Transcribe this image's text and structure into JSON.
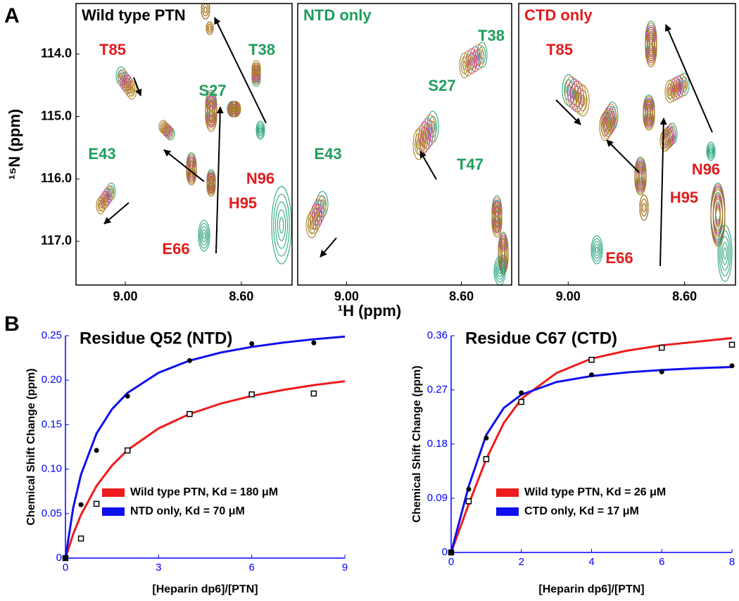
{
  "figure": {
    "panel_labels": [
      "A",
      "B"
    ],
    "xlabel": "¹H (ppm)",
    "ylabel": "¹⁵N (ppm)"
  },
  "chart_data": [
    {
      "type": "spectrum",
      "title": "Wild type PTN",
      "title_color": "#000000",
      "xlim": [
        9.17,
        8.425
      ],
      "ylim": [
        117.7,
        113.19
      ],
      "xticks": [
        {
          "value": 9.0,
          "label": "9.00"
        },
        {
          "value": 8.6,
          "label": "8.60"
        }
      ],
      "yticks": [
        {
          "value": 114.0,
          "label": "114.0"
        },
        {
          "value": 115.0,
          "label": "115.0"
        },
        {
          "value": 116.0,
          "label": "116.0"
        },
        {
          "value": 117.0,
          "label": "117.0"
        }
      ],
      "annotations": [
        {
          "text": "T85",
          "color": "#e31a1c"
        },
        {
          "text": "T38",
          "color": "#1e9e5a"
        },
        {
          "text": "S27",
          "color": "#1e9e5a"
        },
        {
          "text": "E43",
          "color": "#1e9e5a"
        },
        {
          "text": "N96",
          "color": "#e31a1c"
        },
        {
          "text": "H95",
          "color": "#e31a1c"
        },
        {
          "text": "E66",
          "color": "#e31a1c"
        }
      ]
    },
    {
      "type": "spectrum",
      "title": "NTD only",
      "title_color": "#1e9e5a",
      "xlim": [
        9.17,
        8.425
      ],
      "ylim": [
        117.7,
        113.19
      ],
      "xticks": [
        {
          "value": 9.0,
          "label": "9.00"
        },
        {
          "value": 8.6,
          "label": "8.60"
        }
      ],
      "annotations": [
        {
          "text": "T38",
          "color": "#1e9e5a"
        },
        {
          "text": "S27",
          "color": "#1e9e5a"
        },
        {
          "text": "E43",
          "color": "#1e9e5a"
        },
        {
          "text": "T47",
          "color": "#1e9e5a"
        }
      ]
    },
    {
      "type": "spectrum",
      "title": "CTD only",
      "title_color": "#e31a1c",
      "xlim": [
        9.17,
        8.425
      ],
      "ylim": [
        117.7,
        113.19
      ],
      "xticks": [
        {
          "value": 9.0,
          "label": "9.00"
        },
        {
          "value": 8.6,
          "label": "8.60"
        }
      ],
      "annotations": [
        {
          "text": "T85",
          "color": "#e31a1c"
        },
        {
          "text": "N96",
          "color": "#e31a1c"
        },
        {
          "text": "H95",
          "color": "#e31a1c"
        },
        {
          "text": "E66",
          "color": "#e31a1c"
        }
      ]
    },
    {
      "type": "line",
      "title": "Residue Q52 (NTD)",
      "xlabel": "[Heparin dp6]/[PTN]",
      "ylabel": "Chemical Shift Change (ppm)",
      "axis_color": "#0000ff",
      "xlim": [
        0,
        9
      ],
      "xticks": [
        0,
        3,
        6,
        9
      ],
      "ylim": [
        0,
        0.25
      ],
      "yticks": [
        0,
        0.05,
        {
          "value": 0.1,
          "label": "0.10"
        },
        0.15,
        {
          "value": 0.2,
          "label": "0.20"
        },
        0.25
      ],
      "series": [
        {
          "name": "Wild type PTN, Kd = 180 μM",
          "color": "#ee1c1c",
          "marker": "square",
          "x": [
            0,
            0.5,
            1,
            2,
            4,
            6,
            8
          ],
          "values": [
            0,
            0.022,
            0.061,
            0.121,
            0.162,
            0.184,
            0.185
          ],
          "fit_x": [
            0,
            0.25,
            0.5,
            1,
            1.5,
            2,
            3,
            4,
            5,
            6,
            7,
            8,
            9
          ],
          "fit_values": [
            0,
            0.027,
            0.0486,
            0.081,
            0.1041,
            0.1215,
            0.1458,
            0.162,
            0.1736,
            0.1823,
            0.189,
            0.1944,
            0.1988
          ]
        },
        {
          "name": "NTD only, Kd = 70 μM",
          "color": "#1010ee",
          "marker": "circle",
          "x": [
            0,
            0.5,
            1,
            2,
            4,
            6,
            8
          ],
          "values": [
            0,
            0.06,
            0.121,
            0.182,
            0.222,
            0.241,
            0.242
          ],
          "fit_x": [
            0,
            0.25,
            0.5,
            1,
            1.5,
            2,
            3,
            4,
            5,
            6,
            7,
            8,
            9
          ],
          "fit_values": [
            0,
            0.0565,
            0.0938,
            0.14,
            0.1675,
            0.1857,
            0.2084,
            0.222,
            0.231,
            0.2374,
            0.2422,
            0.246,
            0.249
          ]
        }
      ]
    },
    {
      "type": "line",
      "title": "Residue C67 (CTD)",
      "xlabel": "[Heparin dp6]/[PTN]",
      "ylabel": "Chemical Shift Change (ppm)",
      "axis_color": "#0000ff",
      "xlim": [
        0,
        8
      ],
      "xticks": [
        0,
        2,
        4,
        6,
        8
      ],
      "ylim": [
        0,
        0.36
      ],
      "yticks": [
        0,
        0.09,
        0.18,
        0.27,
        0.36
      ],
      "series": [
        {
          "name": "Wild type PTN, Kd = 26 μM",
          "color": "#ee1c1c",
          "marker": "square",
          "x": [
            0,
            0.5,
            1,
            2,
            4,
            6,
            8
          ],
          "values": [
            0,
            0.085,
            0.155,
            0.25,
            0.32,
            0.34,
            0.345
          ],
          "fit_x": [
            0,
            0.25,
            0.5,
            1,
            1.5,
            2,
            3,
            4,
            5,
            6,
            7,
            8
          ],
          "fit_values": [
            0,
            0.04,
            0.08,
            0.155,
            0.215,
            0.255,
            0.298,
            0.322,
            0.335,
            0.344,
            0.35,
            0.356
          ]
        },
        {
          "name": "CTD only, Kd = 17  μM",
          "color": "#1010ee",
          "marker": "circle",
          "x": [
            0,
            0.5,
            1,
            2,
            4,
            6,
            8
          ],
          "values": [
            0,
            0.105,
            0.19,
            0.265,
            0.295,
            0.3,
            0.31
          ],
          "fit_x": [
            0,
            0.25,
            0.5,
            1,
            1.5,
            2,
            3,
            4,
            5,
            6,
            7,
            8
          ],
          "fit_values": [
            0,
            0.055,
            0.11,
            0.195,
            0.24,
            0.262,
            0.283,
            0.293,
            0.299,
            0.303,
            0.306,
            0.308
          ]
        }
      ]
    }
  ]
}
